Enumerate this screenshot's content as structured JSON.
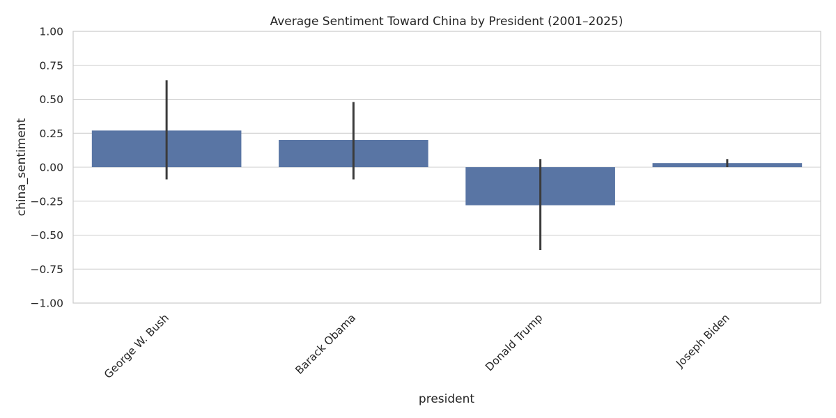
{
  "chart_data": {
    "type": "bar",
    "title": "Average Sentiment Toward China by President (2001–2025)",
    "xlabel": "president",
    "ylabel": "china_sentiment",
    "categories": [
      "George W. Bush",
      "Barack Obama",
      "Donald Trump",
      "Joseph Biden"
    ],
    "series": [
      {
        "values": [
          0.27,
          0.2,
          -0.28,
          0.03
        ],
        "error_low": [
          -0.09,
          -0.09,
          -0.61,
          0.0
        ],
        "error_high": [
          0.64,
          0.48,
          0.06,
          0.06
        ]
      }
    ],
    "ylim": [
      -1.0,
      1.0
    ],
    "yticks": [
      -1.0,
      -0.75,
      -0.5,
      -0.25,
      0.0,
      0.25,
      0.5,
      0.75,
      1.0
    ],
    "ytick_labels": [
      "−1.00",
      "−0.75",
      "−0.50",
      "−0.25",
      "0.00",
      "0.25",
      "0.50",
      "0.75",
      "1.00"
    ],
    "grid": true,
    "legend": "none",
    "colors": {
      "bar": "#5975a4",
      "error_bar": "#3b3b3b",
      "grid": "#cccccc",
      "frame": "#cccccc",
      "text": "#262626"
    }
  }
}
